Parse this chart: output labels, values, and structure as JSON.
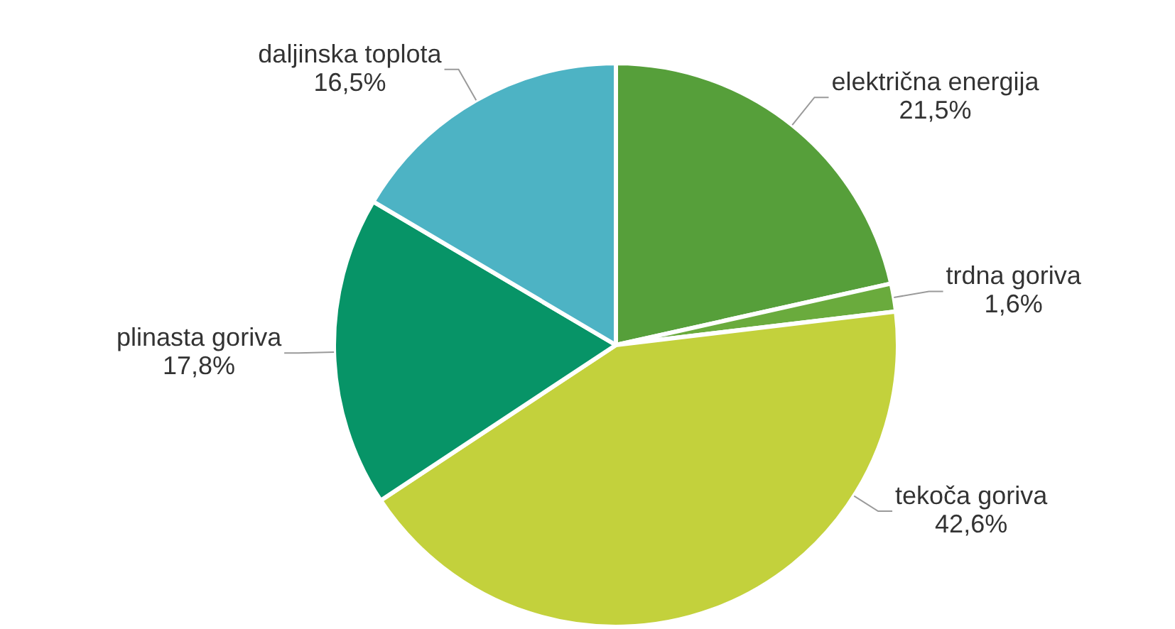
{
  "chart_data": {
    "type": "pie",
    "categories": [
      "električna energija",
      "trdna goriva",
      "tekoča goriva",
      "plinasta goriva",
      "daljinska toplota"
    ],
    "values": [
      21.5,
      1.6,
      42.6,
      17.8,
      16.5
    ],
    "value_labels": [
      "21,5%",
      "1,6%",
      "42,6%",
      "17,8%",
      "16,5%"
    ],
    "colors": [
      "#569f3a",
      "#6aab3d",
      "#c3d13c",
      "#079467",
      "#4db3c4"
    ],
    "legend": false
  }
}
